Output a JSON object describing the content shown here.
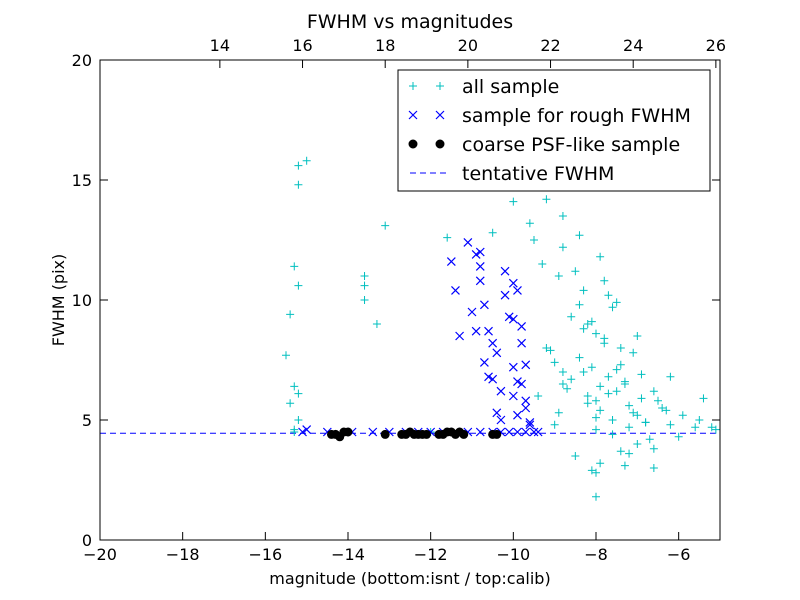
{
  "chart_data": {
    "type": "scatter",
    "title": "FWHM vs magnitudes",
    "xlabel": "magnitude (bottom:isnt / top:calib)",
    "ylabel": "FWHM (pix)",
    "xlim": [
      -20,
      -5
    ],
    "ylim": [
      0,
      20
    ],
    "x_ticks": [
      -20,
      -18,
      -16,
      -14,
      -12,
      -10,
      -8,
      -6
    ],
    "y_ticks": [
      0,
      5,
      10,
      15,
      20
    ],
    "x_tick_labels": [
      "−20",
      "−18",
      "−16",
      "−14",
      "−12",
      "−10",
      "−8",
      "−6"
    ],
    "y_tick_labels": [
      "0",
      "5",
      "10",
      "15",
      "20"
    ],
    "top_axis": {
      "calib_offset": 31.1,
      "ticks": [
        14,
        16,
        18,
        20,
        22,
        24,
        26
      ],
      "tick_labels": [
        "14",
        "16",
        "18",
        "20",
        "22",
        "24",
        "26"
      ]
    },
    "grid": false,
    "legend_position": "upper-right",
    "colors": {
      "all_sample": "#00bfbf",
      "rough_sample": "#0000ff",
      "psf_sample": "#000000",
      "tentative_fwhm": "#0000ff"
    },
    "series": [
      {
        "name": "all sample",
        "marker": "plus",
        "color": "#00bfbf",
        "x": [
          -13.1,
          -15.2,
          -15.0,
          -15.2,
          -15.3,
          -15.4,
          -15.2,
          -13.6,
          -13.6,
          -13.6,
          -13.3,
          -15.5,
          -15.4,
          -15.3,
          -15.2,
          -15.2,
          -15.3,
          -15.3,
          -12.0,
          -11.6,
          -10.5,
          -10.0,
          -9.6,
          -9.2,
          -9.5,
          -9.3,
          -8.9,
          -8.8,
          -8.5,
          -8.4,
          -8.3,
          -8.2,
          -8.0,
          -7.8,
          -7.6,
          -7.4,
          -8.4,
          -8.1,
          -7.7,
          -8.8,
          -7.9,
          -7.3,
          -8.2,
          -8.0,
          -7.9,
          -7.5,
          -7.2,
          -8.0,
          -7.6,
          -7.1,
          -6.8,
          -6.5,
          -6.2,
          -5.9,
          -5.5,
          -5.2,
          -6.0,
          -5.4,
          -6.6,
          -7.9,
          -8.5,
          -8.1,
          -7.3,
          -7.0,
          -6.7,
          -8.8,
          -9.2,
          -9.0,
          -8.6,
          -8.3,
          -7.8,
          -7.5,
          -7.1,
          -6.9,
          -7.4,
          -7.7,
          -8.2,
          -8.7,
          -9.1,
          -9.4,
          -8.9,
          -8.0,
          -7.6,
          -7.2,
          -6.8,
          -6.4,
          -7.0,
          -7.8,
          -8.3,
          -8.6,
          -8.1,
          -7.5,
          -7.3,
          -6.9,
          -6.6,
          -6.3,
          -7.9,
          -8.4,
          -7.7,
          -7.0,
          -6.2,
          -5.6,
          -5.1,
          -7.4,
          -8.0,
          -7.2,
          -6.6,
          -8.8,
          -8.0,
          -9.0
        ],
        "y": [
          13.1,
          15.6,
          15.8,
          14.8,
          11.4,
          9.4,
          10.6,
          11.0,
          10.6,
          10.0,
          9.0,
          7.7,
          5.7,
          6.4,
          6.1,
          5.0,
          4.6,
          4.5,
          4.5,
          12.6,
          12.8,
          14.1,
          13.2,
          14.2,
          12.5,
          11.5,
          11.0,
          12.2,
          11.2,
          9.8,
          10.4,
          9.0,
          8.6,
          8.2,
          9.7,
          8.0,
          7.6,
          7.2,
          6.8,
          7.0,
          6.4,
          6.6,
          6.0,
          5.8,
          5.4,
          6.2,
          5.6,
          5.1,
          5.0,
          5.3,
          4.9,
          5.8,
          4.8,
          5.2,
          5.0,
          4.7,
          4.3,
          5.9,
          3.8,
          3.2,
          3.5,
          2.9,
          3.1,
          4.0,
          4.2,
          6.5,
          8.0,
          7.4,
          9.3,
          8.8,
          10.8,
          9.9,
          7.8,
          6.9,
          7.3,
          6.1,
          5.7,
          6.3,
          7.9,
          6.0,
          5.3,
          4.6,
          4.4,
          4.7,
          4.9,
          5.5,
          5.2,
          8.4,
          7.0,
          6.7,
          9.1,
          7.1,
          6.5,
          5.9,
          6.2,
          5.4,
          11.8,
          12.7,
          10.2,
          8.5,
          6.8,
          4.7,
          4.6,
          3.7,
          2.8,
          3.6,
          3.0,
          13.5,
          1.8,
          4.8
        ]
      },
      {
        "name": "sample for rough FWHM",
        "marker": "x",
        "color": "#0000ff",
        "x": [
          -15.1,
          -15.0,
          -14.5,
          -13.9,
          -13.4,
          -13.0,
          -12.6,
          -12.3,
          -12.0,
          -11.7,
          -11.4,
          -11.1,
          -10.8,
          -10.5,
          -10.3,
          -10.1,
          -9.9,
          -9.7,
          -9.5,
          -9.4,
          -11.5,
          -11.4,
          -11.3,
          -11.1,
          -10.9,
          -10.8,
          -10.7,
          -10.6,
          -10.5,
          -10.4,
          -10.3,
          -10.2,
          -10.1,
          -10.0,
          -10.0,
          -9.9,
          -9.8,
          -9.7,
          -9.7,
          -9.6,
          -10.8,
          -10.8,
          -10.7,
          -10.6,
          -10.5,
          -10.4,
          -10.3,
          -10.0,
          -9.9,
          -9.8,
          -9.7,
          -9.6,
          -11.0,
          -10.9,
          -10.2,
          -10.0,
          -9.9,
          -9.8
        ],
        "y": [
          4.5,
          4.6,
          4.5,
          4.5,
          4.5,
          4.5,
          4.5,
          4.5,
          4.5,
          4.5,
          4.5,
          4.5,
          4.5,
          4.5,
          4.5,
          4.5,
          4.5,
          4.5,
          4.5,
          4.5,
          11.6,
          10.4,
          8.5,
          12.4,
          11.9,
          12.0,
          7.4,
          6.8,
          6.7,
          5.3,
          5.0,
          10.2,
          9.3,
          9.2,
          7.2,
          6.6,
          8.2,
          7.3,
          5.8,
          4.9,
          11.4,
          10.8,
          9.8,
          8.7,
          8.2,
          7.8,
          6.2,
          6.0,
          5.2,
          8.9,
          5.5,
          4.8,
          9.5,
          8.7,
          11.2,
          10.7,
          10.4,
          6.5
        ]
      },
      {
        "name": "coarse PSF-like sample",
        "marker": "circle",
        "color": "#000000",
        "x": [
          -14.4,
          -14.3,
          -14.2,
          -14.1,
          -14.0,
          -13.1,
          -12.7,
          -12.6,
          -12.5,
          -12.4,
          -12.3,
          -12.2,
          -12.1,
          -11.8,
          -11.7,
          -11.6,
          -11.5,
          -11.4,
          -11.3,
          -11.2,
          -10.5,
          -10.4
        ],
        "y": [
          4.4,
          4.4,
          4.3,
          4.5,
          4.5,
          4.4,
          4.4,
          4.4,
          4.5,
          4.4,
          4.4,
          4.4,
          4.4,
          4.4,
          4.4,
          4.5,
          4.5,
          4.4,
          4.5,
          4.4,
          4.4,
          4.4
        ]
      },
      {
        "name": "tentative FWHM",
        "marker": "dashed-line",
        "color": "#0000ff",
        "y_value": 4.45
      }
    ]
  }
}
